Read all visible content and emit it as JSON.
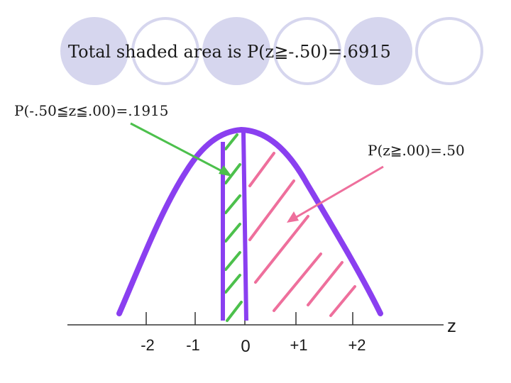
{
  "title": "Total shaded area is P(z≧-.50)=.6915",
  "label_left_region": "P(-.50≦z≦.00)=.1915",
  "label_right_region": "P(z≧.00)=.50",
  "axis_variable": "z",
  "ticks": [
    "-2",
    "-1",
    "0",
    "+1",
    "+2"
  ],
  "colors": {
    "curve": "#8a3ff0",
    "left_hatch": "#4cc04c",
    "right_hatch": "#ee6f9c",
    "decor_circles": "#d6d6ee",
    "axis": "#333333"
  },
  "icons": [
    "green-arrow-icon",
    "pink-arrow-icon"
  ]
}
